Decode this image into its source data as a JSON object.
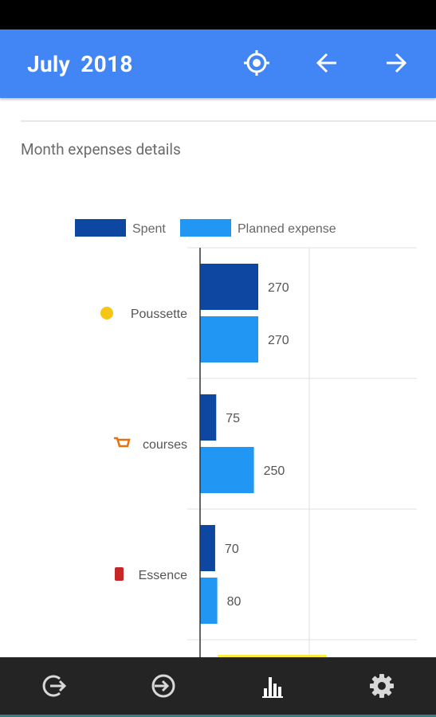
{
  "header": {
    "title": "July 2018",
    "icons": [
      "my-location-icon",
      "arrow-left-icon",
      "arrow-right-icon"
    ]
  },
  "section": {
    "title": "Month expenses details"
  },
  "chart_data": {
    "type": "bar",
    "orientation": "horizontal",
    "categories": [
      "Poussette",
      "courses",
      "Essence"
    ],
    "category_icons": [
      "baby-face-icon",
      "shopping-cart-icon",
      "fuel-pump-icon"
    ],
    "series": [
      {
        "name": "Spent",
        "values": [
          270,
          75,
          70
        ],
        "color": "#0d47a1"
      },
      {
        "name": "Planned expense",
        "values": [
          270,
          250,
          80
        ],
        "color": "#2196f3"
      }
    ],
    "legend_position": "top",
    "grid": true,
    "xlim": [
      0,
      500
    ]
  },
  "bottom_nav": {
    "items": [
      "exit-icon",
      "enter-icon",
      "bar-chart-icon",
      "settings-icon"
    ],
    "active": "bar-chart-icon"
  },
  "colors": {
    "primary": "#4285f4",
    "spent": "#0d47a1",
    "planned": "#2196f3",
    "nav_background": "#242424"
  }
}
